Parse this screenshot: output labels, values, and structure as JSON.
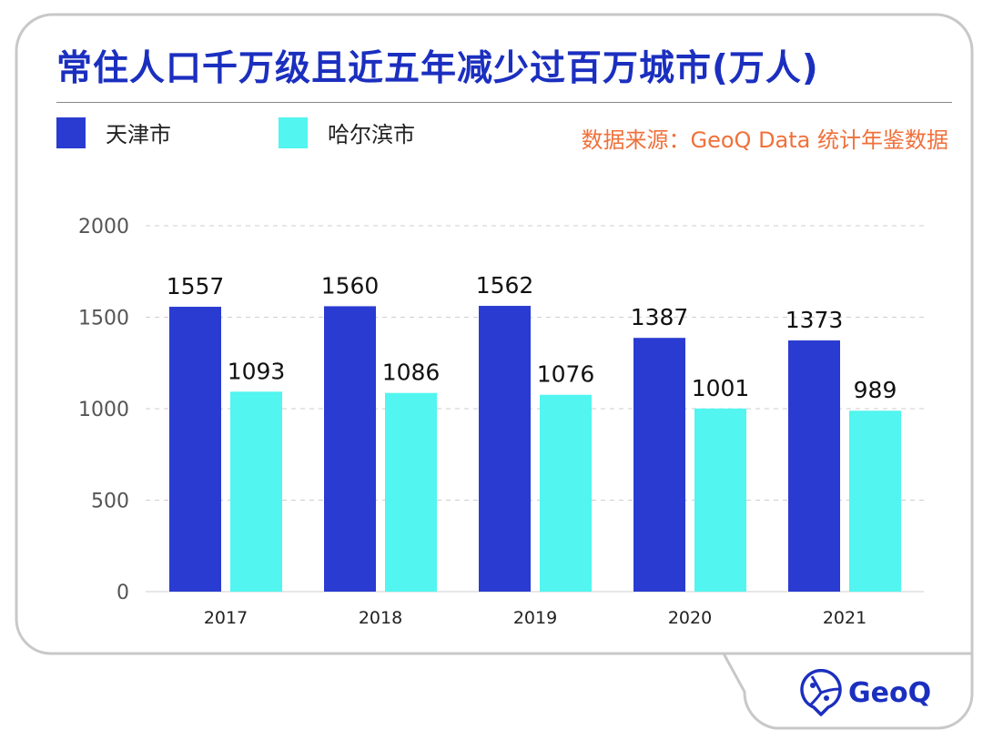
{
  "title": "常住人口千万级且近五年减少过百万城市(万人)",
  "source": "数据来源：GeoQ Data 统计年鉴数据",
  "logo_text": "GeoQ",
  "chart_data": {
    "type": "bar",
    "title": "常住人口千万级且近五年减少过百万城市(万人)",
    "categories": [
      "2017",
      "2018",
      "2019",
      "2020",
      "2021"
    ],
    "series": [
      {
        "name": "天津市",
        "color": "#2a3bd1",
        "values": [
          1557,
          1560,
          1562,
          1387,
          1373
        ]
      },
      {
        "name": "哈尔滨市",
        "color": "#52f5ef",
        "values": [
          1093,
          1086,
          1076,
          1001,
          989
        ]
      }
    ],
    "ylim": [
      0,
      2000
    ],
    "yticks": [
      0,
      500,
      1000,
      1500,
      2000
    ],
    "grid": "horizontal dashed",
    "legend": "top-left",
    "data_labels": true
  }
}
